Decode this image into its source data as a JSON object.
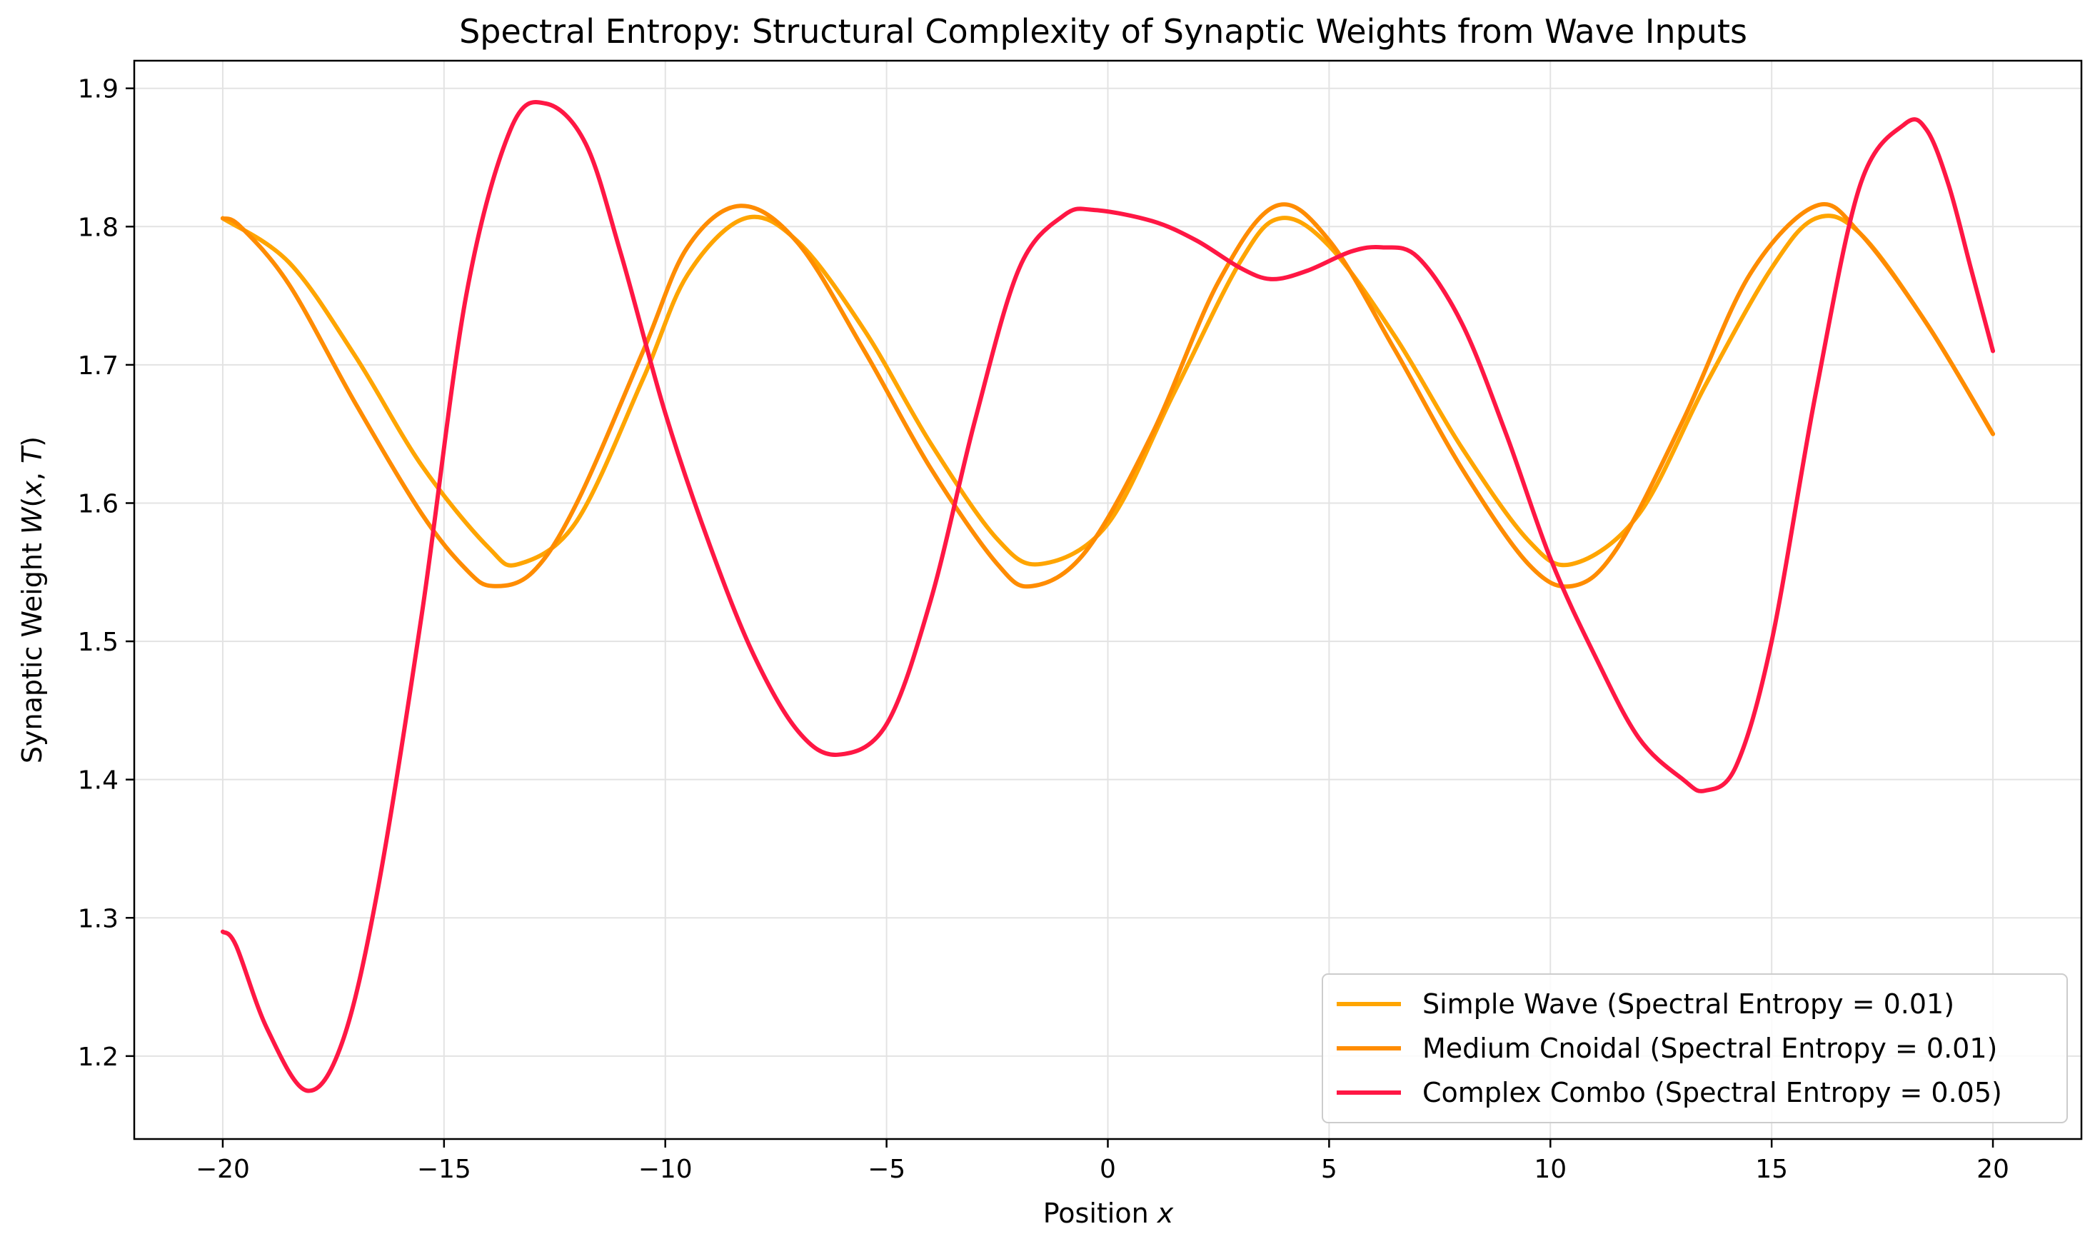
{
  "chart_data": {
    "type": "line",
    "title": "Spectral Entropy: Structural Complexity of Synaptic Weights from Wave Inputs",
    "xlabel": "Position x",
    "ylabel": "Synaptic Weight W(x, T)",
    "xlim": [
      -22,
      22
    ],
    "ylim": [
      1.14,
      1.92
    ],
    "xticks": [
      -20,
      -15,
      -10,
      -5,
      0,
      5,
      10,
      15,
      20
    ],
    "xtick_labels": [
      "−20",
      "−15",
      "−10",
      "−5",
      "0",
      "5",
      "10",
      "15",
      "20"
    ],
    "yticks": [
      1.2,
      1.3,
      1.4,
      1.5,
      1.6,
      1.7,
      1.8,
      1.9
    ],
    "ytick_labels": [
      "1.2",
      "1.3",
      "1.4",
      "1.5",
      "1.6",
      "1.7",
      "1.8",
      "1.9"
    ],
    "grid": true,
    "legend_position": "lower-right",
    "series": [
      {
        "name": "Simple Wave (Spectral Entropy = 0.01)",
        "color": "#FFA500",
        "x": [
          -20,
          -18.5,
          -17,
          -15.5,
          -14,
          -13.3,
          -12,
          -10.5,
          -9.5,
          -8.2,
          -7,
          -5.5,
          -4,
          -2.5,
          -1.5,
          0,
          1.5,
          3,
          3.9,
          5,
          6.5,
          8,
          9.5,
          10.5,
          12,
          13.5,
          15,
          16,
          17,
          18.5,
          20
        ],
        "y": [
          1.806,
          1.774,
          1.706,
          1.627,
          1.568,
          1.556,
          1.587,
          1.69,
          1.765,
          1.806,
          1.789,
          1.725,
          1.643,
          1.574,
          1.556,
          1.585,
          1.68,
          1.775,
          1.806,
          1.786,
          1.72,
          1.64,
          1.573,
          1.556,
          1.592,
          1.685,
          1.77,
          1.806,
          1.795,
          1.73,
          1.65
        ]
      },
      {
        "name": "Medium Cnoidal (Spectral Entropy = 0.01)",
        "color": "#FF8C00",
        "x": [
          -20,
          -19.6,
          -18.5,
          -17,
          -15.5,
          -14.5,
          -13.9,
          -13,
          -12,
          -10.5,
          -9.5,
          -8.3,
          -7,
          -5.5,
          -4,
          -2.5,
          -1.7,
          -0.5,
          1,
          2.5,
          3.8,
          5,
          6.5,
          8,
          9.5,
          10.5,
          11.5,
          13,
          14.5,
          16,
          17,
          18.5,
          20
        ],
        "y": [
          1.806,
          1.8,
          1.758,
          1.672,
          1.592,
          1.552,
          1.54,
          1.55,
          1.6,
          1.71,
          1.785,
          1.815,
          1.788,
          1.71,
          1.625,
          1.556,
          1.54,
          1.565,
          1.65,
          1.76,
          1.815,
          1.79,
          1.71,
          1.625,
          1.556,
          1.54,
          1.567,
          1.66,
          1.765,
          1.815,
          1.795,
          1.73,
          1.65
        ]
      },
      {
        "name": "Complex Combo (Spectral Entropy = 0.05)",
        "color": "#FF1744",
        "x": [
          -20,
          -19.7,
          -19,
          -18.1,
          -17.3,
          -16.5,
          -15.5,
          -14.5,
          -13.5,
          -12.7,
          -11.8,
          -11,
          -10,
          -9,
          -8,
          -7,
          -6.1,
          -5,
          -4,
          -3,
          -2,
          -1,
          -0.3,
          1,
          2,
          3,
          3.7,
          4.5,
          5.5,
          6.2,
          7,
          8,
          9,
          10,
          11,
          12,
          13,
          13.5,
          14.2,
          15,
          16,
          17,
          18,
          18.5,
          19,
          19.5,
          20
        ],
        "y": [
          1.29,
          1.28,
          1.22,
          1.175,
          1.21,
          1.32,
          1.52,
          1.75,
          1.87,
          1.889,
          1.86,
          1.78,
          1.665,
          1.57,
          1.49,
          1.435,
          1.418,
          1.44,
          1.53,
          1.66,
          1.77,
          1.808,
          1.812,
          1.804,
          1.79,
          1.77,
          1.762,
          1.768,
          1.782,
          1.785,
          1.778,
          1.73,
          1.65,
          1.56,
          1.49,
          1.43,
          1.4,
          1.392,
          1.41,
          1.5,
          1.68,
          1.83,
          1.874,
          1.87,
          1.83,
          1.77,
          1.71
        ]
      }
    ]
  }
}
